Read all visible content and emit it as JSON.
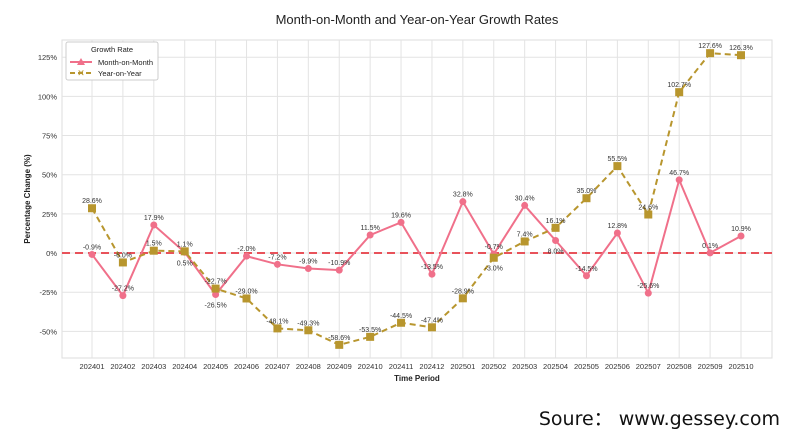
{
  "chart_data": {
    "type": "line",
    "title": "Month-on-Month and Year-on-Year Growth Rates",
    "xlabel": "Time Period",
    "ylabel": "Percentage Change (%)",
    "ylim": [
      -67,
      136
    ],
    "yticks": [
      -50,
      -25,
      0,
      25,
      50,
      75,
      100,
      125
    ],
    "ytick_labels": [
      "-50%",
      "-25%",
      "0%",
      "25%",
      "50%",
      "75%",
      "100%",
      "125%"
    ],
    "grid": true,
    "legend": {
      "title": "Growth Rate",
      "placement": "top-left"
    },
    "categories": [
      "202401",
      "202402",
      "202403",
      "202404",
      "202405",
      "202406",
      "202407",
      "202408",
      "202409",
      "202410",
      "202411",
      "202412",
      "202501",
      "202502",
      "202503",
      "202504",
      "202505",
      "202506",
      "202507",
      "202508",
      "202509",
      "202510"
    ],
    "series": [
      {
        "name": "Month-on-Month",
        "color": "#f0708a",
        "marker": "circle",
        "style": "solid",
        "values": [
          -0.9,
          -27.2,
          17.9,
          0.5,
          -26.5,
          -2.0,
          -7.2,
          -9.9,
          -10.9,
          11.5,
          19.6,
          -13.5,
          32.8,
          -0.7,
          30.4,
          8.0,
          -14.5,
          12.8,
          -25.6,
          46.7,
          0.1,
          10.9
        ]
      },
      {
        "name": "Year-on-Year",
        "color": "#b8962e",
        "marker": "square",
        "style": "dashed",
        "values": [
          28.6,
          -6.0,
          1.5,
          1.1,
          -22.7,
          -29.0,
          -48.1,
          -49.3,
          -58.6,
          -53.5,
          -44.5,
          -47.4,
          -28.9,
          -3.0,
          7.4,
          16.1,
          35.0,
          55.5,
          24.6,
          102.7,
          127.6,
          126.3
        ]
      }
    ],
    "reference_line": {
      "y": 0,
      "color": "#e8525a",
      "style": "dashed"
    }
  },
  "source": "Soure：  www.gessey.com"
}
